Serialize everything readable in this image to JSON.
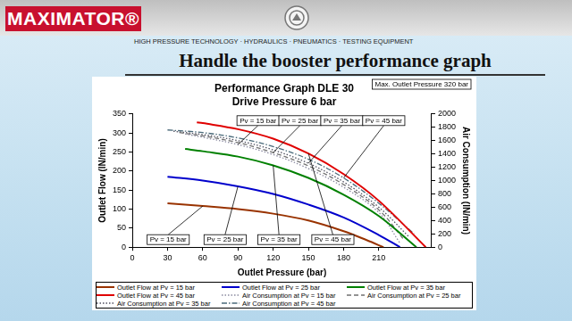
{
  "slide": {
    "brand": "MAXIMATOR®",
    "tagline": "HIGH PRESSURE TECHNOLOGY · HYDRAULICS · PNEUMATICS · TESTING EQUIPMENT",
    "heading": "Handle the booster performance graph"
  },
  "chart_data": {
    "type": "line",
    "title": "Performance Graph DLE 30",
    "subtitle": "Drive Pressure 6 bar",
    "x_label": "Outlet Pressure (bar)",
    "y_label": "Outlet Flow (lN/min)",
    "y2_label": "Air Consumption (lN/min)",
    "annotations": [
      {
        "text": "Max. Outlet Pressure 320 bar"
      },
      {
        "text": "Pv = 15 bar",
        "series": "Air Consumption at Pv = 15 bar"
      },
      {
        "text": "Pv = 25 bar",
        "series": "Air Consumption at Pv = 25 bar"
      },
      {
        "text": "Pv = 35 bar",
        "series": "Air Consumption at Pv = 35 bar"
      },
      {
        "text": "Pv = 45 bar",
        "series": "Air Consumption at Pv = 45 bar"
      },
      {
        "text": "Pv = 15 bar",
        "series": "Outlet Flow at Pv = 15 bar"
      },
      {
        "text": "Pv = 25 bar",
        "series": "Outlet Flow at Pv = 25 bar"
      },
      {
        "text": "Pv = 35 bar",
        "series": "Outlet Flow at Pv = 35 bar"
      },
      {
        "text": "Pv = 45 bar",
        "series": "Outlet Flow at Pv = 45 bar"
      }
    ],
    "xlim": [
      0,
      255
    ],
    "xticks": [
      0,
      30,
      60,
      90,
      120,
      150,
      180,
      210
    ],
    "ylim": [
      0,
      350
    ],
    "yticks": [
      0,
      50,
      100,
      150,
      200,
      250,
      300,
      350
    ],
    "y2lim": [
      0,
      2000
    ],
    "y2ticks": [
      0,
      200,
      400,
      600,
      800,
      1000,
      1200,
      1400,
      1600,
      1800,
      2000
    ],
    "grid": false,
    "legend": "bottom",
    "series": [
      {
        "name": "Outlet Flow at Pv = 15 bar",
        "color": "#993300",
        "line_style": "solid",
        "x": [
          30,
          60,
          90,
          120,
          150,
          180,
          200,
          214
        ],
        "values": [
          115,
          108,
          100,
          88,
          70,
          42,
          18,
          0
        ]
      },
      {
        "name": "Outlet Flow at Pv = 25 bar",
        "color": "#0000cc",
        "line_style": "solid",
        "x": [
          30,
          60,
          90,
          120,
          150,
          180,
          210,
          228
        ],
        "values": [
          185,
          175,
          160,
          140,
          112,
          78,
          32,
          0
        ]
      },
      {
        "name": "Outlet Flow at Pv = 35 bar",
        "color": "#008000",
        "line_style": "solid",
        "x": [
          45,
          60,
          90,
          120,
          150,
          180,
          210,
          242
        ],
        "values": [
          258,
          252,
          238,
          215,
          182,
          138,
          82,
          0
        ]
      },
      {
        "name": "Outlet Flow at Pv = 45 bar",
        "color": "#e00000",
        "line_style": "solid",
        "x": [
          55,
          60,
          90,
          120,
          150,
          180,
          210,
          250
        ],
        "values": [
          328,
          326,
          310,
          285,
          246,
          192,
          122,
          0
        ]
      },
      {
        "name": "Air Consumption at Pv = 15 bar",
        "color": "#8a8aa0",
        "line_style": "dotted",
        "axis": "y2",
        "x": [
          45,
          60,
          90,
          120,
          150,
          180,
          210,
          228
        ],
        "values": [
          1700,
          1650,
          1540,
          1390,
          1180,
          900,
          520,
          60
        ]
      },
      {
        "name": "Air Consumption at Pv = 25 bar",
        "color": "#707070",
        "line_style": "dashed",
        "axis": "y2",
        "x": [
          40,
          60,
          90,
          120,
          150,
          180,
          210,
          232
        ],
        "values": [
          1720,
          1670,
          1570,
          1420,
          1220,
          940,
          560,
          100
        ]
      },
      {
        "name": "Air Consumption at Pv = 35 bar",
        "color": "#505060",
        "line_style": "dotted",
        "axis": "y2",
        "x": [
          35,
          60,
          90,
          120,
          150,
          180,
          210,
          236
        ],
        "values": [
          1740,
          1690,
          1600,
          1460,
          1260,
          980,
          600,
          150
        ]
      },
      {
        "name": "Air Consumption at Pv = 45 bar",
        "color": "#4a6a7a",
        "line_style": "dashdot",
        "axis": "y2",
        "x": [
          30,
          60,
          90,
          120,
          150,
          180,
          210,
          240
        ],
        "values": [
          1760,
          1720,
          1640,
          1510,
          1320,
          1040,
          660,
          200
        ]
      }
    ]
  }
}
